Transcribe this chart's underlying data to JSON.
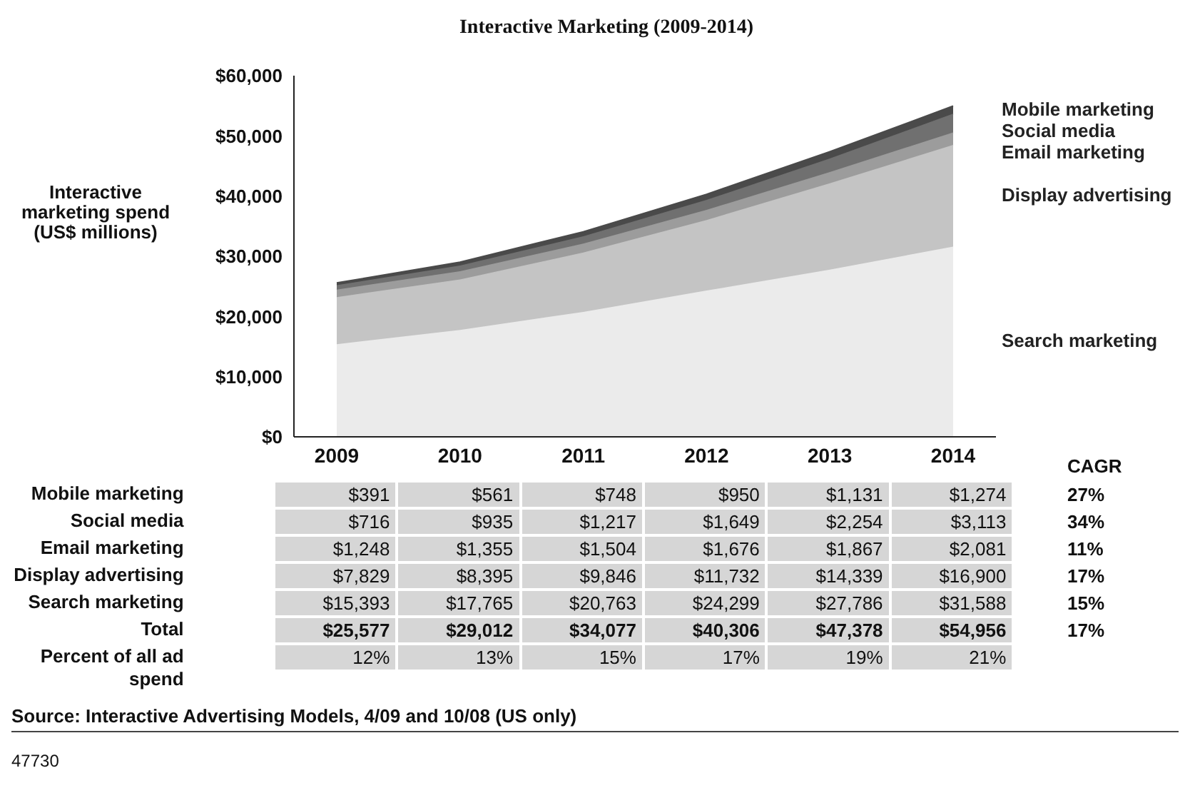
{
  "chart_data": {
    "type": "area",
    "stacked": true,
    "title": "Interactive Marketing (2009-2014)",
    "ylabel": "Interactive marketing spend (US$ millions)",
    "categories": [
      "2009",
      "2010",
      "2011",
      "2012",
      "2013",
      "2014"
    ],
    "series": [
      {
        "name": "Search marketing",
        "color": "#ebebeb",
        "values": [
          15393,
          17765,
          20763,
          24299,
          27786,
          31588
        ],
        "value_labels": [
          "$15,393",
          "$17,765",
          "$20,763",
          "$24,299",
          "$27,786",
          "$31,588"
        ]
      },
      {
        "name": "Display advertising",
        "color": "#c4c4c4",
        "values": [
          7829,
          8395,
          9846,
          11732,
          14339,
          16900
        ],
        "value_labels": [
          "$7,829",
          "$8,395",
          "$9,846",
          "$11,732",
          "$14,339",
          "$16,900"
        ]
      },
      {
        "name": "Email marketing",
        "color": "#9c9c9c",
        "values": [
          1248,
          1355,
          1504,
          1676,
          1867,
          2081
        ],
        "value_labels": [
          "$1,248",
          "$1,355",
          "$1,504",
          "$1,676",
          "$1,867",
          "$2,081"
        ]
      },
      {
        "name": "Social media",
        "color": "#707070",
        "values": [
          716,
          935,
          1217,
          1649,
          2254,
          3113
        ],
        "value_labels": [
          "$716",
          "$935",
          "$1,217",
          "$1,649",
          "$2,254",
          "$3,113"
        ]
      },
      {
        "name": "Mobile marketing",
        "color": "#4a4a4a",
        "values": [
          391,
          561,
          748,
          950,
          1131,
          1274
        ],
        "value_labels": [
          "$391",
          "$561",
          "$748",
          "$950",
          "$1,131",
          "$1,274"
        ]
      }
    ],
    "ylim": [
      0,
      60000
    ],
    "yticks": [
      {
        "value": 0,
        "label": "$0"
      },
      {
        "value": 10000,
        "label": "$10,000"
      },
      {
        "value": 20000,
        "label": "$20,000"
      },
      {
        "value": 30000,
        "label": "$30,000"
      },
      {
        "value": 40000,
        "label": "$40,000"
      },
      {
        "value": 50000,
        "label": "$50,000"
      },
      {
        "value": 60000,
        "label": "$60,000"
      }
    ],
    "grid": false,
    "legend": "right",
    "annotations": [
      "Total",
      "$25,577",
      "$29,012",
      "$34,077",
      "$40,306",
      "$47,378",
      "$54,956",
      "CAGR",
      "27%",
      "34%",
      "11%",
      "17%",
      "15%",
      "17%",
      "Percent of all ad spend",
      "12%",
      "13%",
      "15%",
      "17%",
      "19%",
      "21%",
      "Source: Interactive Advertising Models, 4/09 and 10/08 (US only)",
      "47730"
    ]
  }
}
